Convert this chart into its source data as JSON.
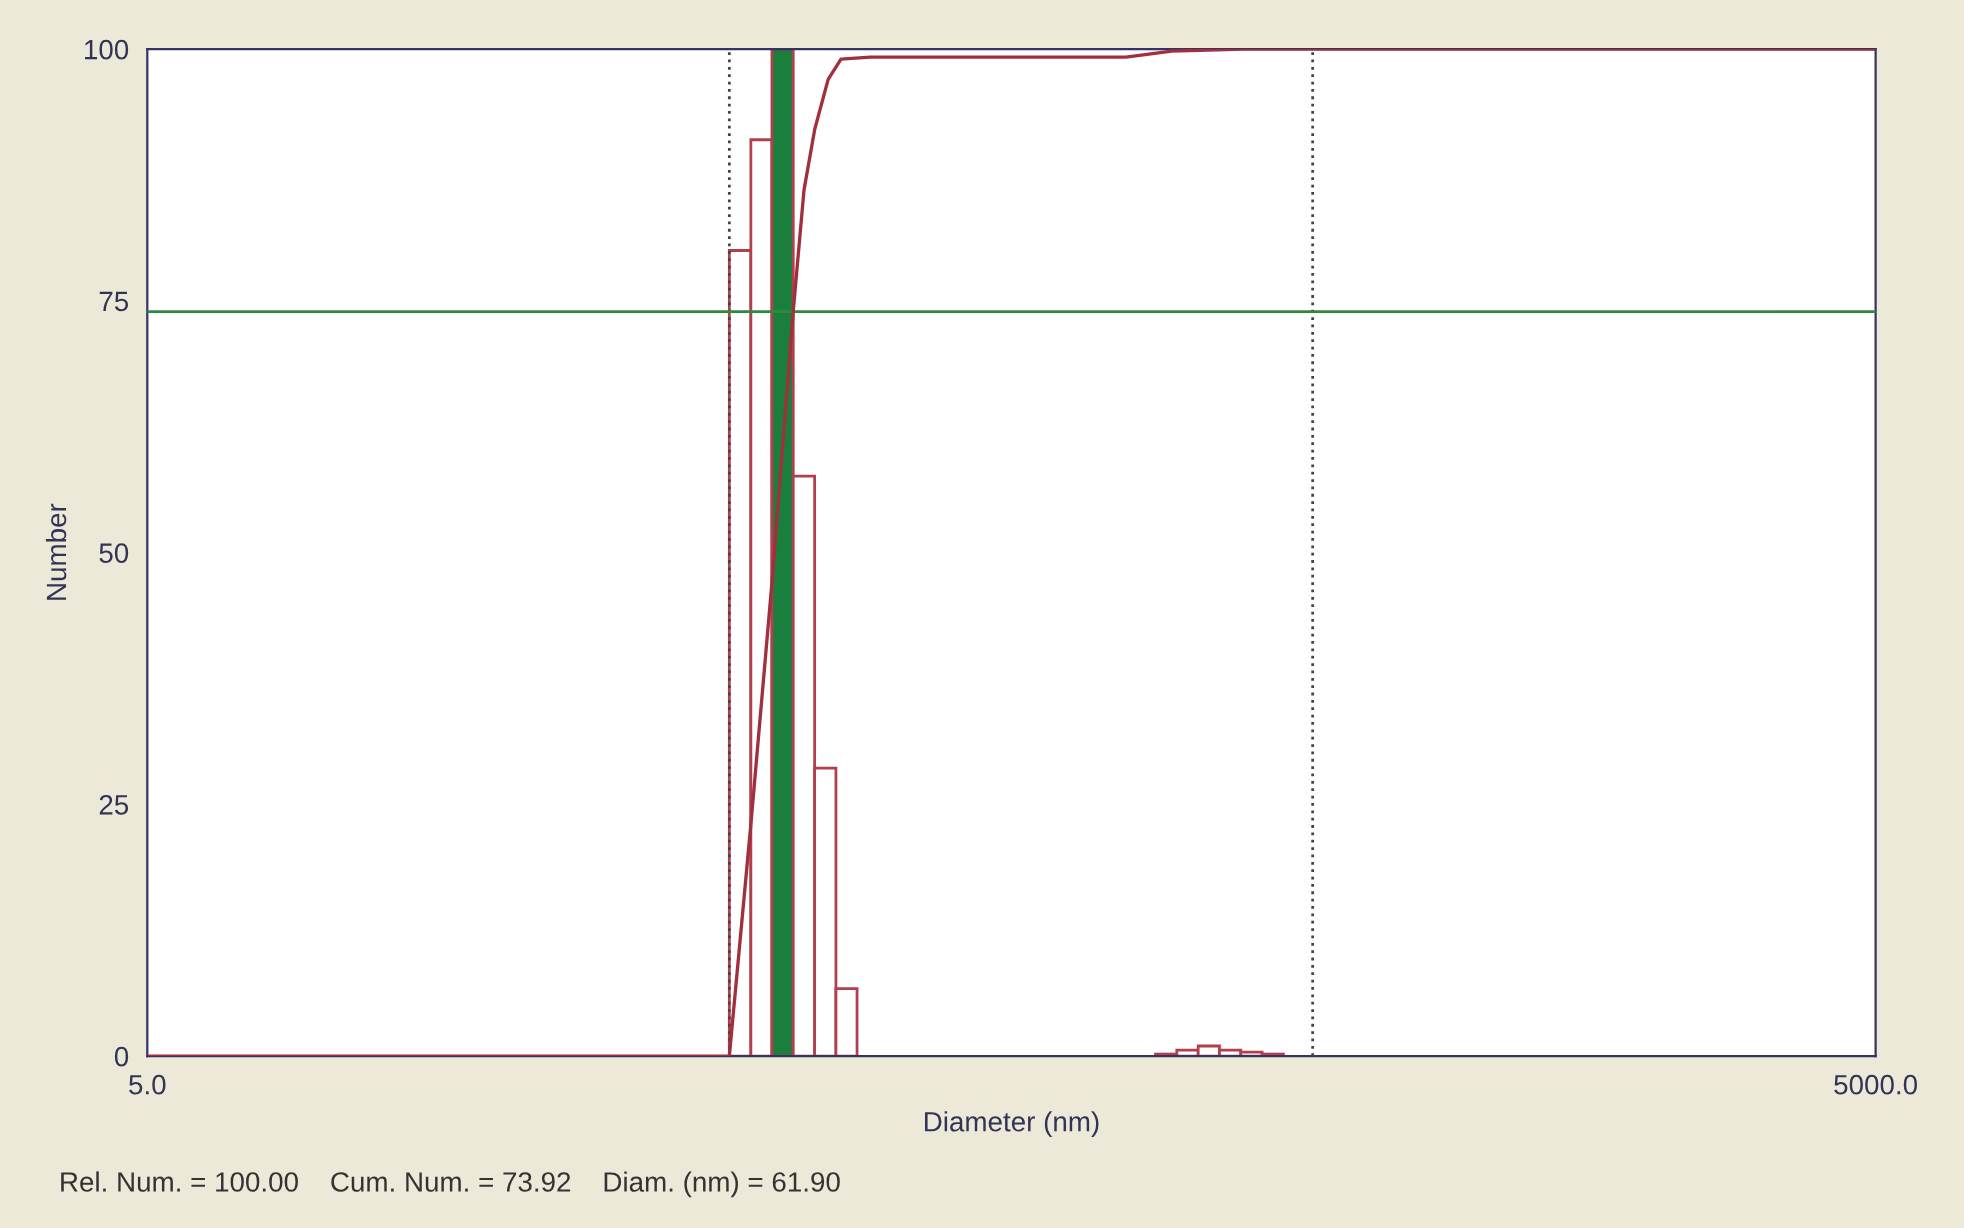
{
  "chart_data": {
    "type": "histogram",
    "xlabel": "Diameter (nm)",
    "ylabel": "Number",
    "log": "x",
    "xlim": [
      5,
      5000
    ],
    "xticks": [
      {
        "value": 5,
        "label": "5.0"
      },
      {
        "value": 5000,
        "label": "5000.0"
      }
    ],
    "ylim": [
      0,
      100
    ],
    "yticks": [
      0,
      25,
      50,
      75,
      100
    ],
    "grid": false,
    "bins": [
      51.2,
      55.8,
      60.7,
      66.1,
      72.0,
      78.4,
      85.3,
      92.9,
      101.2,
      110.2,
      120.0,
      130.6,
      142.3,
      154.9,
      168.7,
      183.7,
      200.0,
      217.8,
      237.2,
      258.3,
      281.2,
      306.2,
      333.5,
      363.1,
      395.4,
      430.6,
      468.9
    ],
    "values": [
      80,
      91,
      100,
      57.6,
      28.6,
      6.7,
      null,
      null,
      null,
      null,
      null,
      null,
      null,
      null,
      null,
      null,
      null,
      null,
      null,
      null,
      0.2,
      0.6,
      1.0,
      0.6,
      0.4,
      0.2
    ],
    "color": "#b0404c",
    "colors": [
      "#ffffff",
      "#ffffff",
      "#1a7f3c",
      "#ffffff",
      "#ffffff",
      "#ffffff",
      null,
      null,
      null,
      null,
      null,
      null,
      null,
      null,
      null,
      null,
      null,
      null,
      null,
      null,
      "#ffffff",
      "#ffffff",
      "#ffffff",
      "#ffffff",
      "#ffffff",
      "#ffffff"
    ],
    "series": [
      {
        "type": "line",
        "color": "#a0303c",
        "x": [
          5,
          51.2,
          55.8,
          60.7,
          66.1,
          69,
          72,
          76,
          80,
          90,
          250,
          300,
          400,
          5000
        ],
        "values": [
          0,
          0,
          23,
          47,
          74,
          86,
          92,
          97,
          99,
          99.2,
          99.2,
          99.8,
          100,
          100
        ]
      }
    ],
    "ref_lines": [
      {
        "axis": "x",
        "value": 51.2,
        "color": "#444444",
        "line_style": "dotted"
      },
      {
        "axis": "x",
        "value": 527,
        "color": "#444444",
        "line_style": "dotted"
      },
      {
        "axis": "y",
        "value": 73.92,
        "color": "#2e8b3e",
        "line_style": "solid"
      }
    ],
    "annotations": [
      "Rel. Num. = 100.00    Cum. Num. = 73.92    Diam. (nm) = 61.90"
    ]
  }
}
